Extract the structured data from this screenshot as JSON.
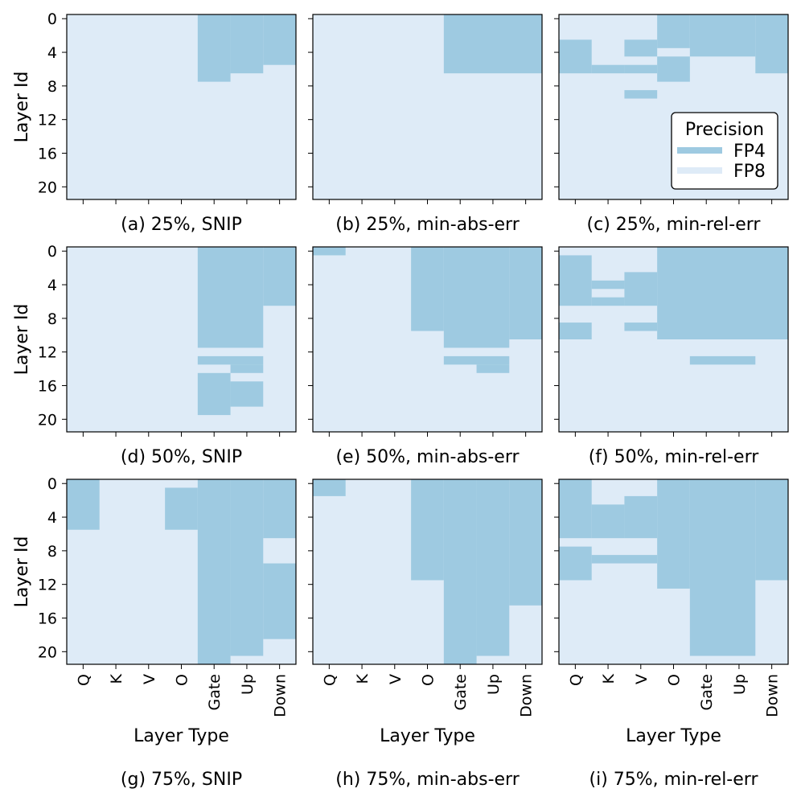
{
  "chart_data": {
    "type": "heatmap",
    "colors": {
      "FP4": "#9ecae1",
      "FP8": "#deebf7",
      "frame": "#000000"
    },
    "x_categories": [
      "Q",
      "K",
      "V",
      "O",
      "Gate",
      "Up",
      "Down"
    ],
    "y_ticks": [
      "0",
      "4",
      "8",
      "12",
      "16",
      "20"
    ],
    "y_tick_values": [
      0,
      4,
      8,
      12,
      16,
      20
    ],
    "n_layers": 22,
    "xlabel": "Layer Type",
    "ylabel": "Layer Id",
    "legend": {
      "title": "Precision",
      "entries": [
        "FP4",
        "FP8"
      ],
      "placement": "inside panel (c), right"
    },
    "panels": [
      {
        "id": "a",
        "caption": "(a) 25%, SNIP",
        "fp4_rects": [
          {
            "cols": [
              4,
              4
            ],
            "rows": [
              0,
              7
            ]
          },
          {
            "cols": [
              5,
              5
            ],
            "rows": [
              0,
              6
            ]
          },
          {
            "cols": [
              6,
              6
            ],
            "rows": [
              0,
              5
            ]
          }
        ]
      },
      {
        "id": "b",
        "caption": "(b) 25%, min-abs-err",
        "fp4_rects": [
          {
            "cols": [
              4,
              6
            ],
            "rows": [
              0,
              6
            ]
          }
        ]
      },
      {
        "id": "c",
        "caption": "(c) 25%, min-rel-err",
        "fp4_rects": [
          {
            "cols": [
              0,
              0
            ],
            "rows": [
              3,
              6
            ]
          },
          {
            "cols": [
              1,
              1
            ],
            "rows": [
              6,
              6
            ]
          },
          {
            "cols": [
              2,
              2
            ],
            "rows": [
              3,
              4
            ]
          },
          {
            "cols": [
              2,
              2
            ],
            "rows": [
              6,
              6
            ]
          },
          {
            "cols": [
              2,
              2
            ],
            "rows": [
              9,
              9
            ]
          },
          {
            "cols": [
              3,
              3
            ],
            "rows": [
              0,
              3
            ]
          },
          {
            "cols": [
              3,
              3
            ],
            "rows": [
              5,
              7
            ]
          },
          {
            "cols": [
              4,
              5
            ],
            "rows": [
              0,
              4
            ]
          },
          {
            "cols": [
              6,
              6
            ],
            "rows": [
              0,
              6
            ]
          }
        ]
      },
      {
        "id": "d",
        "caption": "(d) 50%, SNIP",
        "fp4_rects": [
          {
            "cols": [
              4,
              5
            ],
            "rows": [
              0,
              11
            ]
          },
          {
            "cols": [
              6,
              6
            ],
            "rows": [
              0,
              6
            ]
          },
          {
            "cols": [
              4,
              5
            ],
            "rows": [
              13,
              13
            ]
          },
          {
            "cols": [
              5,
              5
            ],
            "rows": [
              14,
              14
            ]
          },
          {
            "cols": [
              4,
              4
            ],
            "rows": [
              15,
              19
            ]
          },
          {
            "cols": [
              5,
              5
            ],
            "rows": [
              16,
              18
            ]
          }
        ]
      },
      {
        "id": "e",
        "caption": "(e) 50%, min-abs-err",
        "fp4_rects": [
          {
            "cols": [
              0,
              0
            ],
            "rows": [
              0,
              0
            ]
          },
          {
            "cols": [
              3,
              3
            ],
            "rows": [
              0,
              9
            ]
          },
          {
            "cols": [
              4,
              5
            ],
            "rows": [
              0,
              11
            ]
          },
          {
            "cols": [
              6,
              6
            ],
            "rows": [
              0,
              10
            ]
          },
          {
            "cols": [
              4,
              5
            ],
            "rows": [
              13,
              13
            ]
          },
          {
            "cols": [
              5,
              5
            ],
            "rows": [
              14,
              14
            ]
          }
        ]
      },
      {
        "id": "f",
        "caption": "(f) 50%, min-rel-err",
        "fp4_rects": [
          {
            "cols": [
              0,
              0
            ],
            "rows": [
              1,
              6
            ]
          },
          {
            "cols": [
              0,
              0
            ],
            "rows": [
              9,
              10
            ]
          },
          {
            "cols": [
              1,
              1
            ],
            "rows": [
              4,
              4
            ]
          },
          {
            "cols": [
              1,
              1
            ],
            "rows": [
              6,
              6
            ]
          },
          {
            "cols": [
              2,
              2
            ],
            "rows": [
              3,
              6
            ]
          },
          {
            "cols": [
              2,
              2
            ],
            "rows": [
              9,
              9
            ]
          },
          {
            "cols": [
              3,
              6
            ],
            "rows": [
              0,
              10
            ]
          },
          {
            "cols": [
              4,
              5
            ],
            "rows": [
              13,
              13
            ]
          }
        ]
      },
      {
        "id": "g",
        "caption": "(g) 75%, SNIP",
        "fp4_rects": [
          {
            "cols": [
              0,
              0
            ],
            "rows": [
              0,
              5
            ]
          },
          {
            "cols": [
              3,
              3
            ],
            "rows": [
              1,
              5
            ]
          },
          {
            "cols": [
              4,
              4
            ],
            "rows": [
              0,
              21
            ]
          },
          {
            "cols": [
              5,
              5
            ],
            "rows": [
              0,
              20
            ]
          },
          {
            "cols": [
              6,
              6
            ],
            "rows": [
              0,
              6
            ]
          },
          {
            "cols": [
              6,
              6
            ],
            "rows": [
              10,
              18
            ]
          }
        ]
      },
      {
        "id": "h",
        "caption": "(h) 75%, min-abs-err",
        "fp4_rects": [
          {
            "cols": [
              0,
              0
            ],
            "rows": [
              0,
              1
            ]
          },
          {
            "cols": [
              3,
              3
            ],
            "rows": [
              0,
              11
            ]
          },
          {
            "cols": [
              4,
              4
            ],
            "rows": [
              0,
              21
            ]
          },
          {
            "cols": [
              5,
              5
            ],
            "rows": [
              0,
              20
            ]
          },
          {
            "cols": [
              6,
              6
            ],
            "rows": [
              0,
              14
            ]
          }
        ]
      },
      {
        "id": "i",
        "caption": "(i) 75%, min-rel-err",
        "fp4_rects": [
          {
            "cols": [
              0,
              0
            ],
            "rows": [
              0,
              6
            ]
          },
          {
            "cols": [
              0,
              0
            ],
            "rows": [
              8,
              11
            ]
          },
          {
            "cols": [
              1,
              1
            ],
            "rows": [
              3,
              6
            ]
          },
          {
            "cols": [
              1,
              2
            ],
            "rows": [
              9,
              9
            ]
          },
          {
            "cols": [
              2,
              2
            ],
            "rows": [
              2,
              6
            ]
          },
          {
            "cols": [
              3,
              3
            ],
            "rows": [
              0,
              12
            ]
          },
          {
            "cols": [
              4,
              5
            ],
            "rows": [
              0,
              20
            ]
          },
          {
            "cols": [
              6,
              6
            ],
            "rows": [
              0,
              11
            ]
          }
        ]
      }
    ]
  }
}
